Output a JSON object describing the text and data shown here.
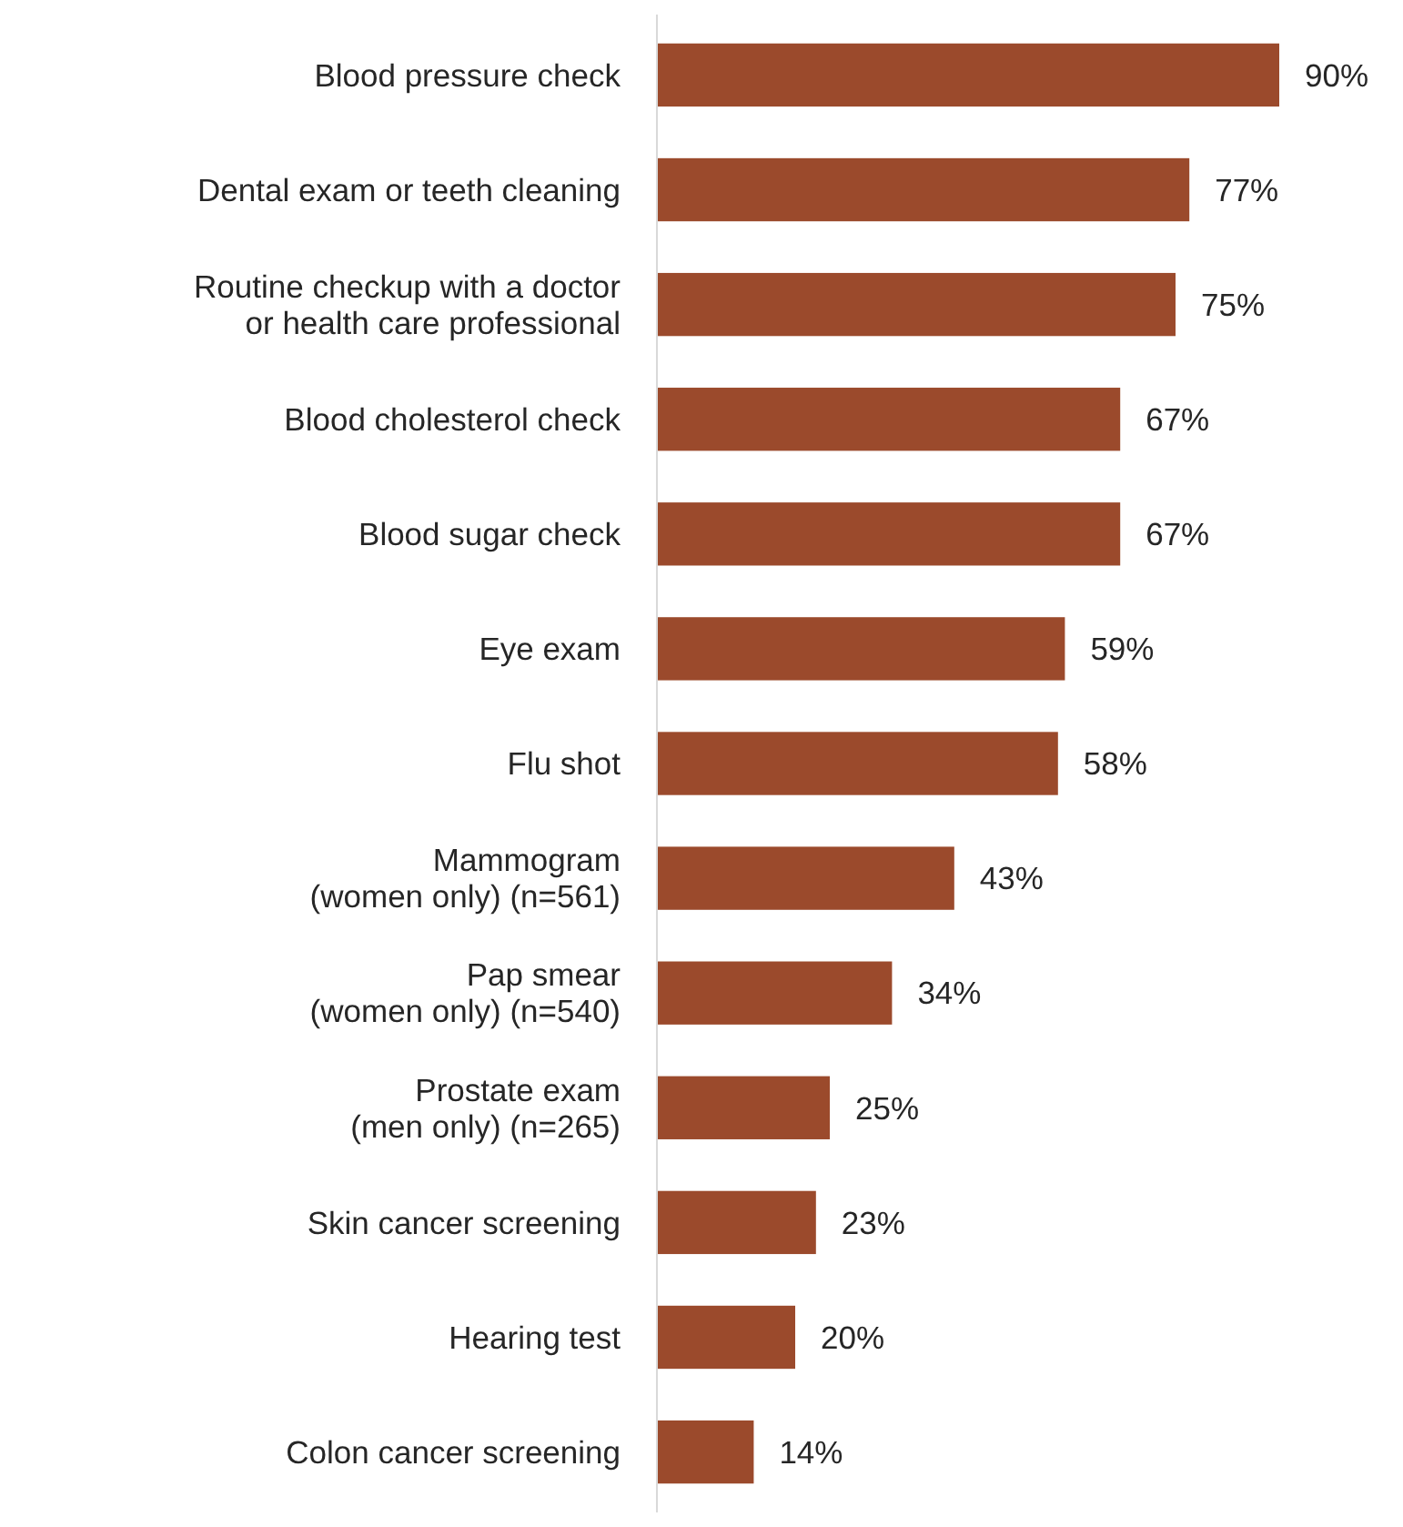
{
  "chart_data": {
    "type": "bar",
    "orientation": "horizontal",
    "categories": [
      "Blood pressure check",
      "Dental exam or teeth cleaning",
      "Routine checkup with a doctor\nor health care professional",
      "Blood cholesterol check",
      "Blood sugar check",
      "Eye exam",
      "Flu shot",
      "Mammogram\n(women only) (n=561)",
      "Pap smear\n(women only) (n=540)",
      "Prostate exam\n(men only) (n=265)",
      "Skin cancer screening",
      "Hearing test",
      "Colon cancer screening"
    ],
    "values": [
      90,
      77,
      75,
      67,
      67,
      59,
      58,
      43,
      34,
      25,
      23,
      20,
      14
    ],
    "value_labels": [
      "90%",
      "77%",
      "75%",
      "67%",
      "67%",
      "59%",
      "58%",
      "43%",
      "34%",
      "25%",
      "23%",
      "20%",
      "14%"
    ],
    "color": "#9b4a2c"
  }
}
